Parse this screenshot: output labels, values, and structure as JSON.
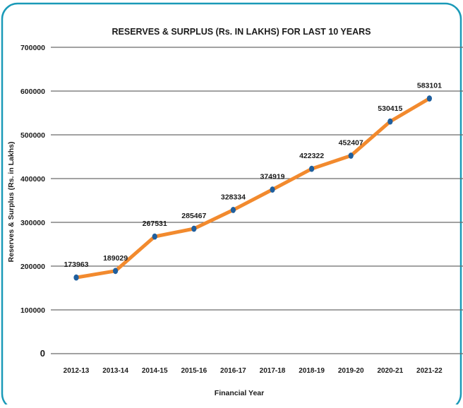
{
  "colors": {
    "frame": "#1a9ab8",
    "line": "#f28a2e",
    "marker": "#1f5f9e",
    "grid": "#6b6b6b",
    "text": "#1a1a1a"
  },
  "chart_data": {
    "type": "line",
    "title": "RESERVES & SURPLUS (Rs. IN LAKHS) FOR LAST 10 YEARS",
    "xlabel": "Financial Year",
    "ylabel": "Reserves & Surplus (Rs. in Lakhs)",
    "ylim": [
      0,
      700000
    ],
    "yticks": [
      0,
      100000,
      200000,
      300000,
      400000,
      500000,
      600000,
      700000
    ],
    "ytick_labels": [
      "0",
      "100000",
      "200000",
      "300000",
      "400000",
      "500000",
      "600000",
      "700000"
    ],
    "grid": true,
    "legend": "none",
    "categories": [
      "2012-13",
      "2013-14",
      "2014-15",
      "2015-16",
      "2016-17",
      "2017-18",
      "2018-19",
      "2019-20",
      "2020-21",
      "2021-22"
    ],
    "series": [
      {
        "values": [
          173963,
          189029,
          267531,
          285467,
          328334,
          374919,
          422322,
          452407,
          530415,
          583101
        ],
        "labels": [
          "173963",
          "189029",
          "267531",
          "285467",
          "328334",
          "374919",
          "422322",
          "452407",
          "530415",
          "583101"
        ]
      }
    ]
  }
}
